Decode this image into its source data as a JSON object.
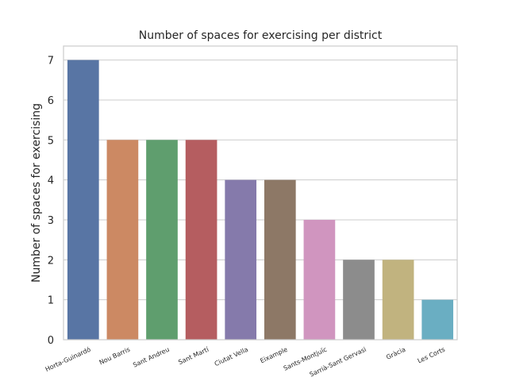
{
  "chart_data": {
    "type": "bar",
    "title": "Number of spaces for exercising per district",
    "xlabel": "",
    "ylabel": "Number of spaces for exercising",
    "categories": [
      "Horta-Guinardó",
      "Nou Barris",
      "Sant Andreu",
      "Sant Martí",
      "Ciutat Vella",
      "Eixample",
      "Sants-Montjuïc",
      "Sarrià-Sant Gervasi",
      "Gràcia",
      "Les Corts"
    ],
    "values": [
      7,
      5,
      5,
      5,
      4,
      4,
      3,
      2,
      2,
      1
    ],
    "colors": [
      "#5875a4",
      "#cc8963",
      "#5f9e6e",
      "#b55d60",
      "#857aab",
      "#8d7866",
      "#d095bf",
      "#8c8c8c",
      "#c1b37f",
      "#6aaec2"
    ],
    "ylim": [
      0,
      7
    ],
    "yticks": [
      "0",
      "1",
      "2",
      "3",
      "4",
      "5",
      "6",
      "7"
    ],
    "grid": "horizontal",
    "x_tick_rotation": "rotated"
  }
}
